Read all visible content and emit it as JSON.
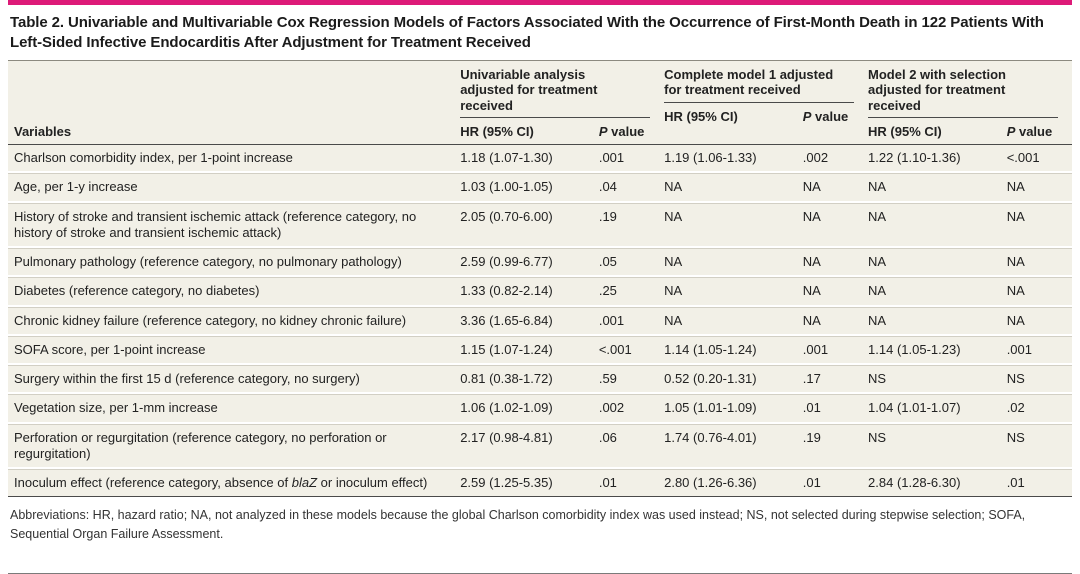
{
  "page": {
    "title": "Table 2. Univariable and Multivariable Cox Regression Models of Factors Associated With the Occurrence of First-Month Death in 122 Patients With Left-Sided Infective Endocarditis After Adjustment for Treatment Received"
  },
  "table": {
    "variables_head": "Variables",
    "hr_head": "HR (95% CI)",
    "p_head": {
      "italic": "P",
      "rest": " value"
    },
    "groups": [
      {
        "label": "Univariable analysis adjusted for treatment received"
      },
      {
        "label": "Complete model 1 adjusted for treatment received"
      },
      {
        "label": "Model 2 with selection adjusted for treatment received"
      }
    ],
    "rows": [
      {
        "label": [
          {
            "t": "Charlson comorbidity index, per 1-point increase"
          }
        ],
        "values": [
          "1.18 (1.07-1.30)",
          ".001",
          "1.19 (1.06-1.33)",
          ".002",
          "1.22 (1.10-1.36)",
          "<.001"
        ]
      },
      {
        "label": [
          {
            "t": "Age, per 1-y increase"
          }
        ],
        "values": [
          "1.03 (1.00-1.05)",
          ".04",
          "NA",
          "NA",
          "NA",
          "NA"
        ]
      },
      {
        "label": [
          {
            "t": "History of stroke and transient ischemic attack (reference category, no history of stroke and transient ischemic attack)"
          }
        ],
        "values": [
          "2.05 (0.70-6.00)",
          ".19",
          "NA",
          "NA",
          "NA",
          "NA"
        ]
      },
      {
        "label": [
          {
            "t": "Pulmonary pathology (reference category, no pulmonary pathology)"
          }
        ],
        "values": [
          "2.59 (0.99-6.77)",
          ".05",
          "NA",
          "NA",
          "NA",
          "NA"
        ]
      },
      {
        "label": [
          {
            "t": "Diabetes (reference category, no diabetes)"
          }
        ],
        "values": [
          "1.33 (0.82-2.14)",
          ".25",
          "NA",
          "NA",
          "NA",
          "NA"
        ]
      },
      {
        "label": [
          {
            "t": "Chronic kidney failure (reference category, no kidney chronic failure)"
          }
        ],
        "values": [
          "3.36 (1.65-6.84)",
          ".001",
          "NA",
          "NA",
          "NA",
          "NA"
        ]
      },
      {
        "label": [
          {
            "t": "SOFA score, per 1-point increase"
          }
        ],
        "values": [
          "1.15 (1.07-1.24)",
          "<.001",
          "1.14 (1.05-1.24)",
          ".001",
          "1.14 (1.05-1.23)",
          ".001"
        ]
      },
      {
        "label": [
          {
            "t": "Surgery within the first 15 d (reference category, no surgery)"
          }
        ],
        "values": [
          "0.81 (0.38-1.72)",
          ".59",
          "0.52 (0.20-1.31)",
          ".17",
          "NS",
          "NS"
        ]
      },
      {
        "label": [
          {
            "t": "Vegetation size, per 1-mm increase"
          }
        ],
        "values": [
          "1.06 (1.02-1.09)",
          ".002",
          "1.05 (1.01-1.09)",
          ".01",
          "1.04 (1.01-1.07)",
          ".02"
        ]
      },
      {
        "label": [
          {
            "t": "Perforation or regurgitation (reference category, no perforation or regurgitation)"
          }
        ],
        "values": [
          "2.17 (0.98-4.81)",
          ".06",
          "1.74 (0.76-4.01)",
          ".19",
          "NS",
          "NS"
        ]
      },
      {
        "label": [
          {
            "t": "Inoculum effect (reference category, absence of "
          },
          {
            "t": "blaZ",
            "i": true
          },
          {
            "t": " or inoculum effect)"
          }
        ],
        "values": [
          "2.59 (1.25-5.35)",
          ".01",
          "2.80 (1.26-6.36)",
          ".01",
          "2.84 (1.28-6.30)",
          ".01"
        ]
      }
    ],
    "footnote": "Abbreviations: HR, hazard ratio; NA, not analyzed in these models because the global Charlson comorbidity index was used instead; NS, not selected during stepwise selection; SOFA, Sequential Organ Failure Assessment."
  },
  "colors": {
    "accent": "#dd1a78",
    "row_background": "#f2f0e7",
    "rule_dark": "#4a4a4a",
    "rule_light": "#8c8a80",
    "row_divider": "#d2cfc4"
  }
}
